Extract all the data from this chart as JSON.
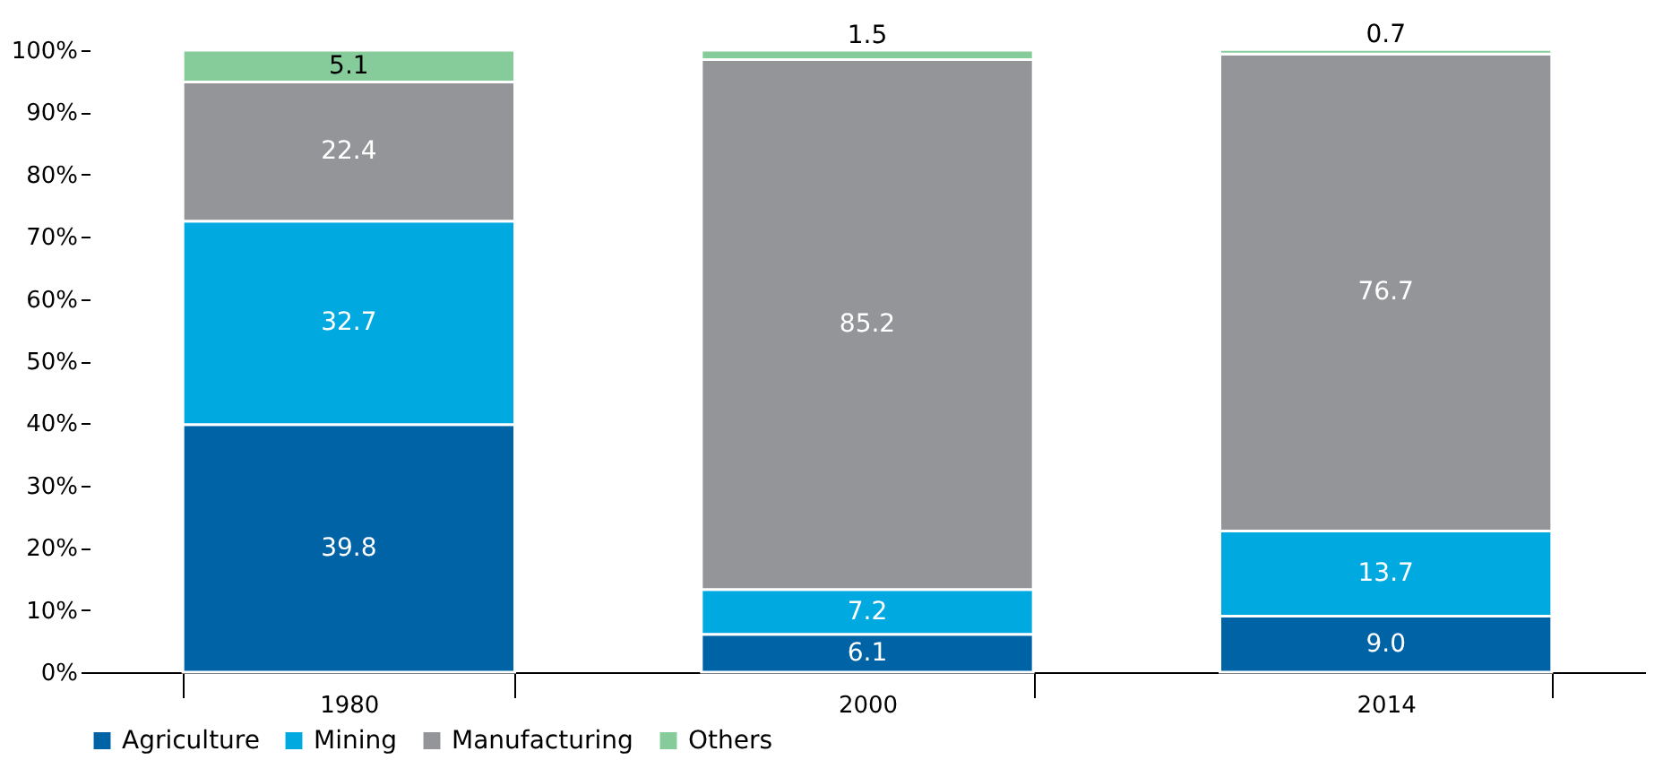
{
  "chart_data": {
    "type": "bar",
    "stacked": true,
    "categories": [
      "1980",
      "2000",
      "2014"
    ],
    "series": [
      {
        "name": "Agriculture",
        "color": "#0063a6",
        "values": [
          39.8,
          6.1,
          9.0
        ],
        "value_labels": [
          "39.8",
          "6.1",
          "9.0"
        ]
      },
      {
        "name": "Mining",
        "color": "#00a9e0",
        "values": [
          32.7,
          7.2,
          13.7
        ],
        "value_labels": [
          "32.7",
          "7.2",
          "13.7"
        ]
      },
      {
        "name": "Manufacturing",
        "color": "#939598",
        "values": [
          22.4,
          85.2,
          76.7
        ],
        "value_labels": [
          "22.4",
          "85.2",
          "76.7"
        ]
      },
      {
        "name": "Others",
        "color": "#86cc9a",
        "values": [
          5.1,
          1.5,
          0.7
        ],
        "value_labels": [
          "5.1",
          "1.5",
          "0.7"
        ]
      }
    ],
    "ylim": [
      0,
      100
    ],
    "yticks": [
      {
        "value": 0,
        "label": "0%"
      },
      {
        "value": 10,
        "label": "10%"
      },
      {
        "value": 20,
        "label": "20%"
      },
      {
        "value": 30,
        "label": "30%"
      },
      {
        "value": 40,
        "label": "40%"
      },
      {
        "value": 50,
        "label": "50%"
      },
      {
        "value": 60,
        "label": "60%"
      },
      {
        "value": 70,
        "label": "70%"
      },
      {
        "value": 80,
        "label": "80%"
      },
      {
        "value": 90,
        "label": "90%"
      },
      {
        "value": 100,
        "label": "100%"
      }
    ],
    "grid": false,
    "legend": "bottom"
  }
}
